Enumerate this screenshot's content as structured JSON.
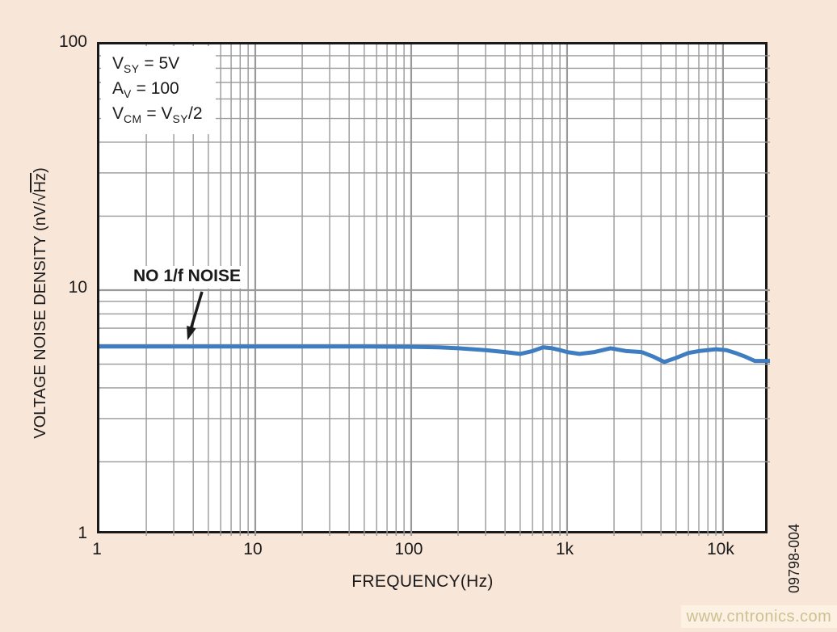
{
  "chart_data": {
    "type": "line",
    "title": "",
    "xlabel": "FREQUENCY(Hz)",
    "ylabel": "VOLTAGE NOISE DENSITY (nV/√Hz)",
    "xscale": "log",
    "yscale": "log",
    "xlim": [
      1,
      20000
    ],
    "ylim": [
      1,
      100
    ],
    "grid": true,
    "x_ticks": [
      {
        "value": 1,
        "label": "1"
      },
      {
        "value": 10,
        "label": "10"
      },
      {
        "value": 100,
        "label": "100"
      },
      {
        "value": 1000,
        "label": "1k"
      },
      {
        "value": 10000,
        "label": "10k"
      }
    ],
    "y_ticks": [
      {
        "value": 1,
        "label": "1"
      },
      {
        "value": 10,
        "label": "10"
      },
      {
        "value": 100,
        "label": "100"
      }
    ],
    "series": [
      {
        "name": "voltage noise density",
        "color": "#3e7dbf",
        "x": [
          1,
          2,
          5,
          10,
          20,
          50,
          100,
          150,
          200,
          300,
          400,
          500,
          600,
          700,
          800,
          900,
          1000,
          1200,
          1500,
          1900,
          2400,
          3000,
          3600,
          4200,
          5000,
          6000,
          7000,
          9000,
          10500,
          12000,
          14000,
          16000,
          20000
        ],
        "y": [
          5.9,
          5.9,
          5.9,
          5.9,
          5.9,
          5.9,
          5.88,
          5.85,
          5.8,
          5.7,
          5.6,
          5.5,
          5.65,
          5.85,
          5.8,
          5.7,
          5.6,
          5.5,
          5.6,
          5.8,
          5.65,
          5.6,
          5.35,
          5.1,
          5.3,
          5.55,
          5.65,
          5.75,
          5.7,
          5.55,
          5.35,
          5.15,
          5.15
        ]
      }
    ],
    "annotations": {
      "conditions_text": [
        "V_SY = 5V",
        "A_V = 100",
        "V_CM = V_SY/2"
      ],
      "callout": "NO 1/f NOISE"
    }
  },
  "conditions": {
    "line1": {
      "base": "V",
      "sub": "SY",
      "rest": " = 5V"
    },
    "line2": {
      "base": "A",
      "sub": "V",
      "rest": " = 100"
    },
    "line3": {
      "base": "V",
      "sub": "CM",
      "mid": " = V",
      "sub2": "SY",
      "rest": "/2"
    }
  },
  "labels": {
    "no_noise": "NO 1/f NOISE",
    "figure_number": "09798-004",
    "watermark": "www.cntronics.com",
    "ylabel_prefix": "VOLTAGE NOISE DENSITY (nV/√",
    "ylabel_sqrt_arg": "Hz",
    "ylabel_suffix": ")"
  },
  "colors": {
    "background": "#f8e6d9",
    "plot_background": "#ffffff",
    "grid": "#999999",
    "frame": "#1a1a1a",
    "line": "#3e7dbf",
    "text": "#1a1a1a",
    "watermark_text": "#cdc092",
    "watermark_background": "#fcf1e2"
  }
}
